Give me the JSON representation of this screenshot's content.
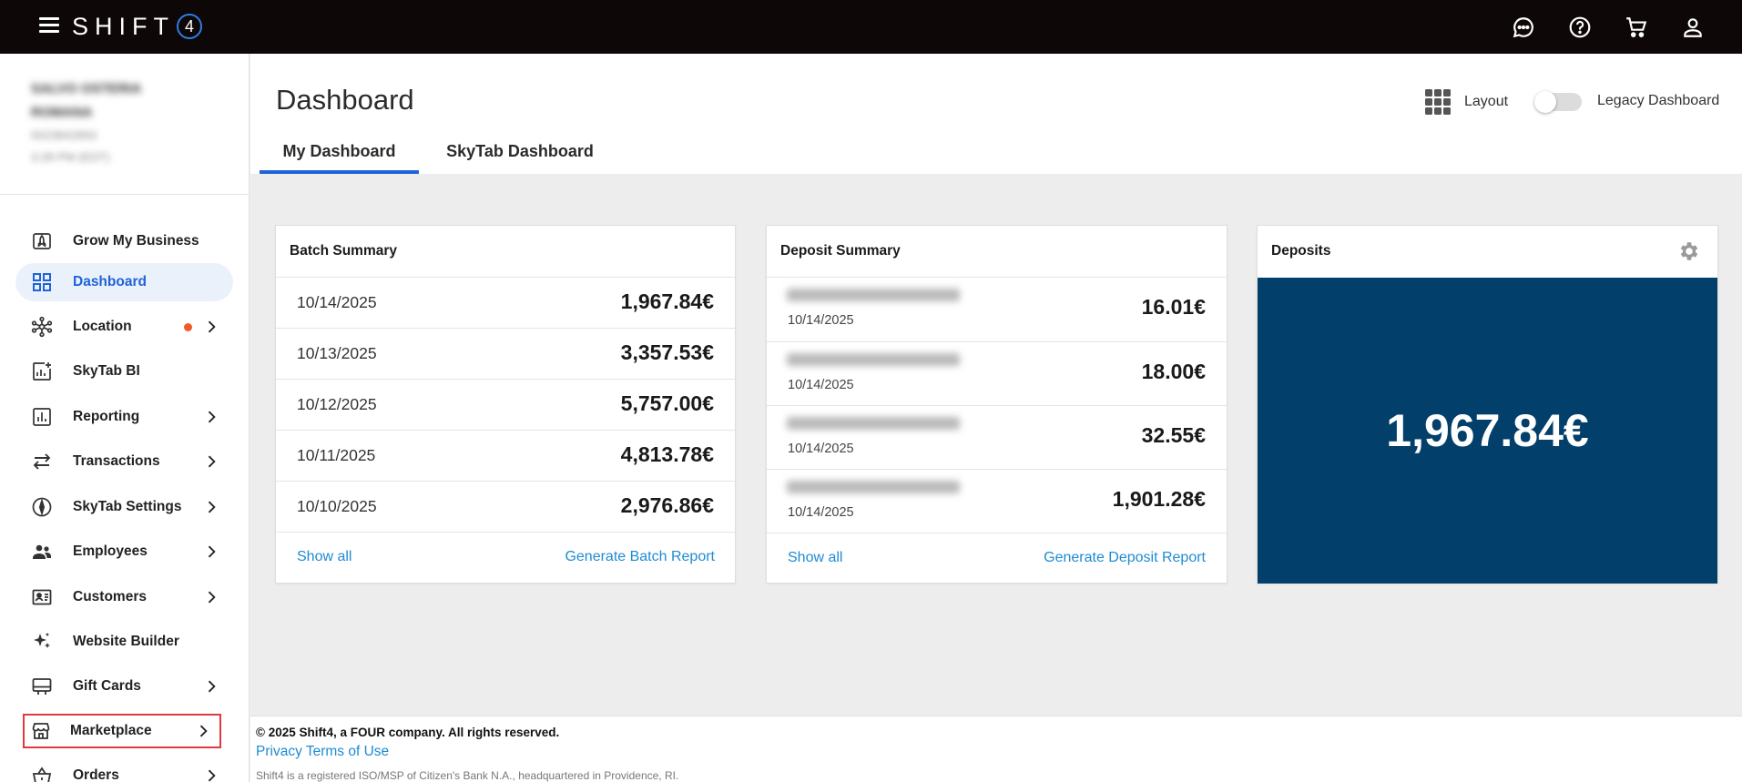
{
  "topbar": {
    "logo_text": "SHIFT",
    "logo_badge": "4",
    "icons": [
      "chat-icon",
      "help-icon",
      "cart-icon",
      "account-icon"
    ]
  },
  "merchant": {
    "name_line1": "SALVO OSTERIA",
    "name_line2": "ROMANA",
    "id": "0023842850",
    "time": "3:28 PM (EDT)"
  },
  "sidebar": {
    "items": [
      {
        "label": "Grow My Business",
        "icon": "rocket-icon",
        "chevron": false
      },
      {
        "label": "Dashboard",
        "icon": "dashboard-grid-icon",
        "chevron": false,
        "active": true
      },
      {
        "label": "Location",
        "icon": "network-icon",
        "chevron": true,
        "dot": true
      },
      {
        "label": "SkyTab BI",
        "icon": "analytics-icon",
        "chevron": false
      },
      {
        "label": "Reporting",
        "icon": "bar-chart-icon",
        "chevron": true
      },
      {
        "label": "Transactions",
        "icon": "swap-arrows-icon",
        "chevron": true
      },
      {
        "label": "SkyTab Settings",
        "icon": "compass-icon",
        "chevron": true
      },
      {
        "label": "Employees",
        "icon": "people-icon",
        "chevron": true
      },
      {
        "label": "Customers",
        "icon": "id-card-icon",
        "chevron": true
      },
      {
        "label": "Website Builder",
        "icon": "sparkle-icon",
        "chevron": false
      },
      {
        "label": "Gift Cards",
        "icon": "gift-card-icon",
        "chevron": true
      },
      {
        "label": "Marketplace",
        "icon": "store-icon",
        "chevron": true,
        "highlighted": true
      },
      {
        "label": "Orders",
        "icon": "basket-icon",
        "chevron": true
      }
    ]
  },
  "header": {
    "title": "Dashboard",
    "layout_label": "Layout",
    "legacy_label": "Legacy Dashboard",
    "legacy_enabled": false,
    "tabs": [
      {
        "label": "My Dashboard",
        "active": true
      },
      {
        "label": "SkyTab Dashboard",
        "active": false
      }
    ]
  },
  "batch_summary": {
    "title": "Batch Summary",
    "rows": [
      {
        "date": "10/14/2025",
        "amount": "1,967.84€"
      },
      {
        "date": "10/13/2025",
        "amount": "3,357.53€"
      },
      {
        "date": "10/12/2025",
        "amount": "5,757.00€"
      },
      {
        "date": "10/11/2025",
        "amount": "4,813.78€"
      },
      {
        "date": "10/10/2025",
        "amount": "2,976.86€"
      }
    ],
    "show_all": "Show all",
    "report_link": "Generate Batch Report"
  },
  "deposit_summary": {
    "title": "Deposit Summary",
    "rows": [
      {
        "account": "XXXXXXXX1234 (EUR)",
        "date": "10/14/2025",
        "amount": "16.01€"
      },
      {
        "account": "XXXXXXXX1234 (EUR)",
        "date": "10/14/2025",
        "amount": "18.00€"
      },
      {
        "account": "XXXXXXXX1234 (EUR)",
        "date": "10/14/2025",
        "amount": "32.55€"
      },
      {
        "account": "XXXXXXXX1234 (EUR)",
        "date": "10/14/2025",
        "amount": "1,901.28€"
      }
    ],
    "show_all": "Show all",
    "report_link": "Generate Deposit Report"
  },
  "deposits": {
    "title": "Deposits",
    "amount": "1,967.84€",
    "panel_color": "#023f6a"
  },
  "footer": {
    "copyright": "© 2025 Shift4, a FOUR company. All rights reserved.",
    "privacy": "Privacy",
    "terms": "Terms of Use",
    "disclaimer": "Shift4 is a registered ISO/MSP of Citizen's Bank N.A., headquartered in Providence, RI."
  },
  "colors": {
    "accent": "#1f63d6",
    "link": "#1e8bd1",
    "alert_dot": "#f05a28",
    "highlight_outline": "#e0393e"
  }
}
